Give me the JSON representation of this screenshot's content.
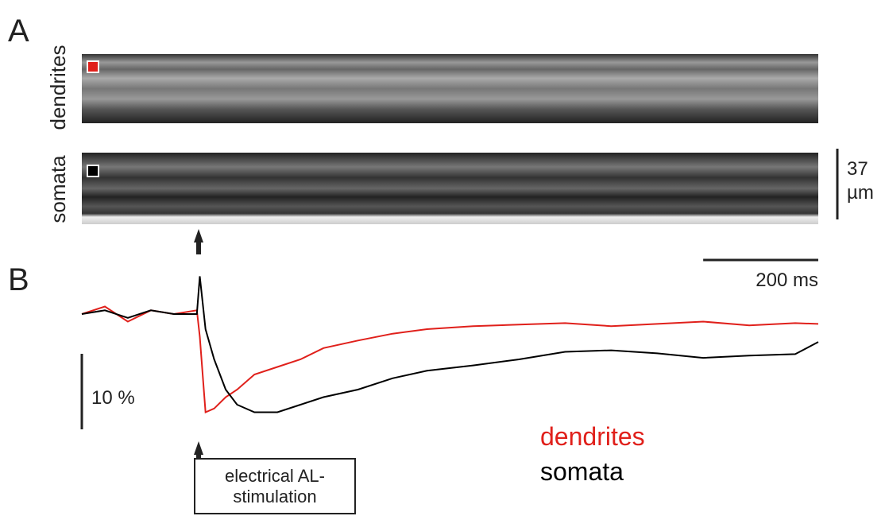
{
  "panel_a": {
    "label": "A",
    "rows": [
      "dendrites",
      "somata"
    ],
    "scale_bar": "37 µm"
  },
  "chart_data": {
    "type": "line",
    "panel_label": "B",
    "x": [
      0,
      40,
      80,
      120,
      160,
      200,
      205,
      215,
      230,
      250,
      270,
      300,
      340,
      380,
      420,
      480,
      540,
      600,
      680,
      760,
      840,
      920,
      1000,
      1080,
      1160,
      1240,
      1280
    ],
    "series": [
      {
        "name": "dendrites",
        "color": "#e0201b",
        "values": [
          0,
          1,
          -1,
          0.5,
          0,
          0.5,
          -3,
          -13,
          -12.5,
          -11,
          -10,
          -8,
          -7,
          -6,
          -4.5,
          -3.5,
          -2.6,
          -2,
          -1.6,
          -1.4,
          -1.2,
          -1.6,
          -1.3,
          -1,
          -1.5,
          -1.2,
          -1.3
        ]
      },
      {
        "name": "somata",
        "color": "#000000",
        "values": [
          0,
          0.5,
          -0.5,
          0.5,
          0,
          0,
          5,
          -2,
          -6,
          -10,
          -12,
          -13,
          -13,
          -12,
          -11,
          -10,
          -8.5,
          -7.5,
          -6.8,
          -6,
          -5,
          -4.8,
          -5.2,
          -5.8,
          -5.5,
          -5.3,
          -3.7
        ]
      }
    ],
    "xlim": [
      0,
      1280
    ],
    "ylim": [
      -16,
      7
    ],
    "scale_bars": {
      "x": {
        "value": 200,
        "label": "200 ms"
      },
      "y": {
        "value": 10,
        "label": "10 %"
      }
    },
    "annotation": "electrical AL-stimulation"
  }
}
